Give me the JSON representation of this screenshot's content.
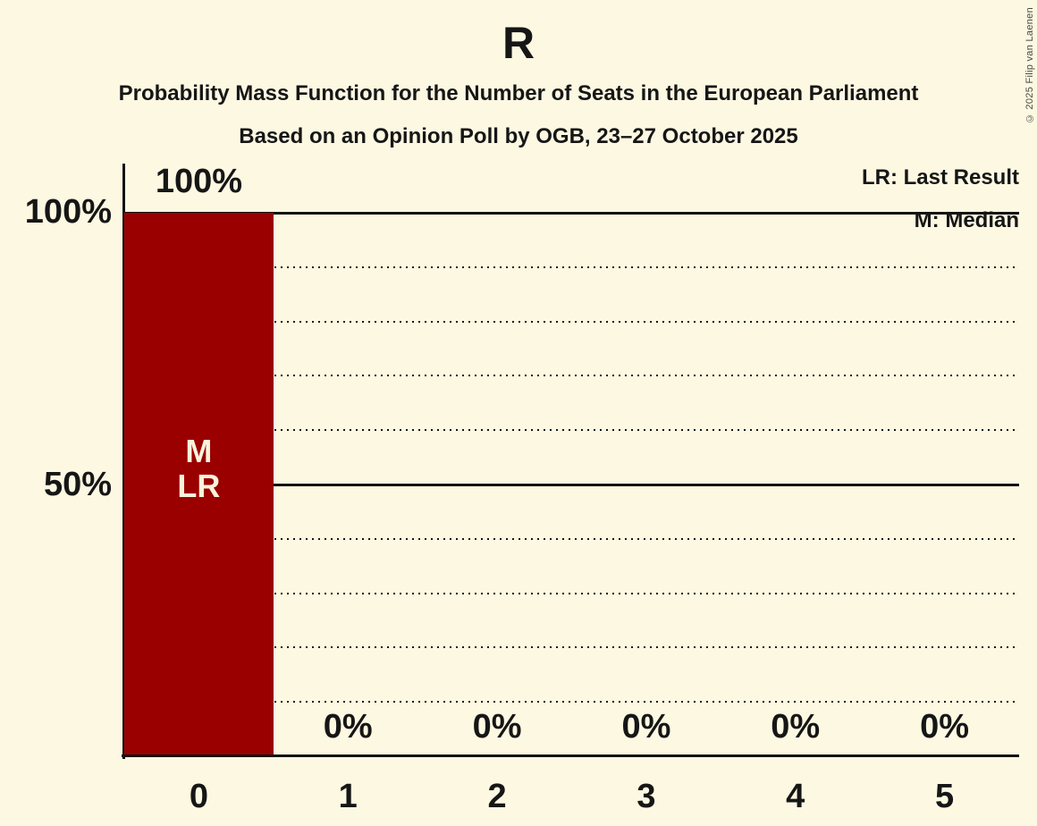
{
  "title": "R",
  "subtitles": [
    "Probability Mass Function for the Number of Seats in the European Parliament",
    "Based on an Opinion Poll by OGB, 23–27 October 2025"
  ],
  "copyright": "© 2025 Filip van Laenen",
  "legend": {
    "last_result": "LR: Last Result",
    "median": "M: Median"
  },
  "y_axis_labels": {
    "top": "100%",
    "middle": "50%"
  },
  "colors": {
    "background": "#FDF8E2",
    "bar": "#9A0000",
    "text": "#161616",
    "bar_label_text": "#F9F4DC"
  },
  "chart_data": {
    "type": "bar",
    "title": "R",
    "categories": [
      "0",
      "1",
      "2",
      "3",
      "4",
      "5"
    ],
    "values": [
      100,
      0,
      0,
      0,
      0,
      0
    ],
    "value_labels": [
      "100%",
      "0%",
      "0%",
      "0%",
      "0%",
      "0%"
    ],
    "bar_annotations": {
      "category": "0",
      "labels": [
        "M",
        "LR"
      ]
    },
    "ylim": [
      0,
      100
    ],
    "y_solid_gridlines_pct": [
      100,
      50
    ],
    "y_dotted_gridlines_pct": [
      90,
      80,
      70,
      60,
      40,
      30,
      20,
      10
    ],
    "grid": "horizontal",
    "legend_position": "top-right"
  }
}
